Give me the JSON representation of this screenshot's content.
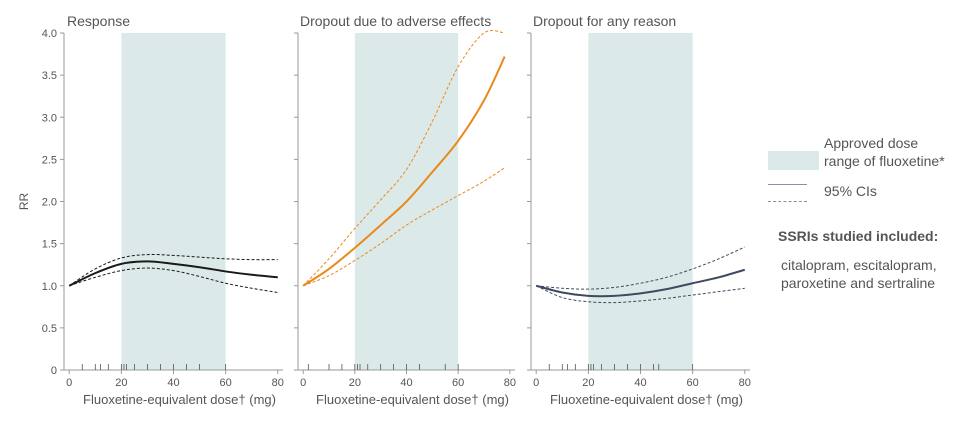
{
  "chart_data": [
    {
      "type": "line",
      "title": "Response",
      "ylabel": "RR",
      "xlabel": "Fluoxetine-equivalent dose† (mg)",
      "xlim": [
        -2,
        82
      ],
      "ylim": [
        0,
        4.0
      ],
      "xticks": [
        0,
        20,
        40,
        60,
        80
      ],
      "yticks": [
        "0",
        "0.5",
        "1.0",
        "1.5",
        "2.0",
        "2.5",
        "3.0",
        "3.5",
        "4.0"
      ],
      "approved_range": [
        20,
        60
      ],
      "dose_rug": [
        5,
        10,
        12,
        15,
        20,
        21,
        22,
        25,
        30,
        35,
        40,
        45,
        50,
        60
      ],
      "line_color": "#1a1a1a",
      "x": [
        0,
        10,
        20,
        30,
        40,
        50,
        60,
        70,
        80
      ],
      "series": [
        {
          "values": [
            1.0,
            1.15,
            1.26,
            1.29,
            1.26,
            1.22,
            1.17,
            1.13,
            1.1
          ]
        },
        {
          "values": [
            1.0,
            1.2,
            1.33,
            1.37,
            1.36,
            1.34,
            1.32,
            1.31,
            1.31
          ],
          "dashed": true
        },
        {
          "values": [
            1.0,
            1.1,
            1.18,
            1.21,
            1.18,
            1.11,
            1.03,
            0.97,
            0.92
          ],
          "dashed": true
        }
      ]
    },
    {
      "type": "line",
      "title": "Dropout due to adverse effects",
      "xlabel": "Fluoxetine-equivalent dose† (mg)",
      "xlim": [
        -2,
        82
      ],
      "ylim": [
        0,
        4.0
      ],
      "xticks": [
        0,
        20,
        40,
        60,
        80
      ],
      "approved_range": [
        20,
        60
      ],
      "dose_rug": [
        2,
        10,
        15,
        20,
        21,
        22,
        25,
        30,
        35,
        40,
        45,
        55,
        60
      ],
      "line_color": "#e8891c",
      "x": [
        0,
        10,
        20,
        30,
        40,
        50,
        60,
        70,
        78
      ],
      "series": [
        {
          "values": [
            1.0,
            1.2,
            1.45,
            1.72,
            2.0,
            2.35,
            2.72,
            3.2,
            3.72
          ]
        },
        {
          "values": [
            1.0,
            1.32,
            1.68,
            2.02,
            2.38,
            2.95,
            3.6,
            4.0,
            4.0
          ],
          "dashed": true
        },
        {
          "values": [
            1.0,
            1.12,
            1.3,
            1.5,
            1.72,
            1.9,
            2.07,
            2.24,
            2.4
          ],
          "dashed": true
        }
      ]
    },
    {
      "type": "line",
      "title": "Dropout for any reason",
      "xlabel": "Fluoxetine-equivalent dose† (mg)",
      "xlim": [
        -2,
        82
      ],
      "ylim": [
        0,
        4.0
      ],
      "xticks": [
        0,
        20,
        40,
        60,
        80
      ],
      "approved_range": [
        20,
        60
      ],
      "dose_rug": [
        5,
        10,
        12,
        15,
        20,
        21,
        22,
        25,
        30,
        35,
        40,
        45,
        47,
        60
      ],
      "line_color": "#3d4b61",
      "x": [
        0,
        10,
        20,
        30,
        40,
        50,
        60,
        70,
        80
      ],
      "series": [
        {
          "values": [
            1.0,
            0.92,
            0.88,
            0.88,
            0.91,
            0.96,
            1.03,
            1.1,
            1.19
          ]
        },
        {
          "values": [
            1.0,
            0.97,
            0.96,
            0.98,
            1.03,
            1.1,
            1.2,
            1.32,
            1.46
          ],
          "dashed": true
        },
        {
          "values": [
            1.0,
            0.86,
            0.81,
            0.8,
            0.82,
            0.85,
            0.89,
            0.93,
            0.97
          ],
          "dashed": true
        }
      ]
    }
  ],
  "colors": {
    "band": "#dce9e9",
    "axis": "#9a9a9a",
    "text": "#555555"
  },
  "legend": {
    "band_label_1": "Approved dose",
    "band_label_2": "range of fluoxetine*",
    "ci_label": "95% CIs"
  },
  "note": {
    "heading": "SSRIs studied included:",
    "text": "citalopram, escitalopram, paroxetine and sertraline"
  }
}
